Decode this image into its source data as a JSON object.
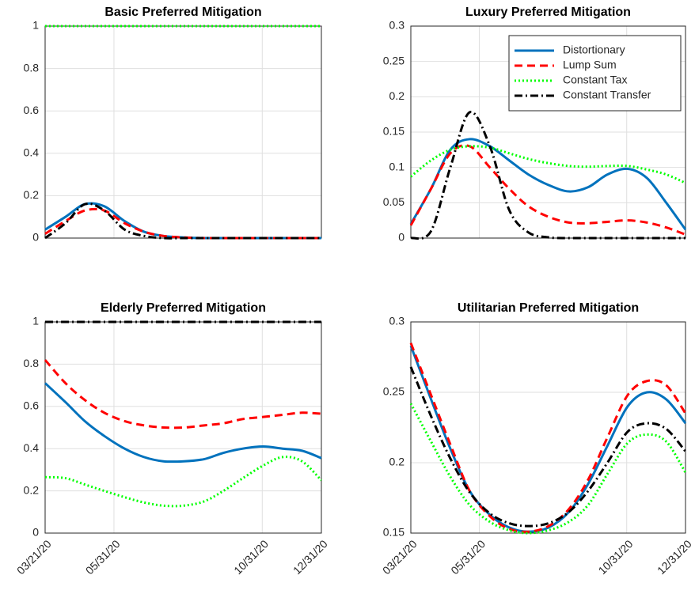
{
  "chart_data": [
    {
      "type": "line",
      "title": "Basic Preferred Mitigation",
      "grid": true,
      "show_xtick_labels": false,
      "x": [
        "03/21/20",
        "04/11/20",
        "05/01/20",
        "05/21/20",
        "06/11/20",
        "07/01/20",
        "07/21/20",
        "08/11/20",
        "09/01/20",
        "09/21/20",
        "10/11/20",
        "11/01/20",
        "11/21/20",
        "12/11/20",
        "12/31/20"
      ],
      "xlim": [
        "03/21/20",
        "12/31/20"
      ],
      "xticks": [
        "05/31/20",
        "10/31/20"
      ],
      "ylim": [
        0,
        1
      ],
      "yticks": [
        0,
        0.2,
        0.4,
        0.6,
        0.8,
        1
      ],
      "series": [
        {
          "color": "#0072bd",
          "dash": "none",
          "values": [
            0.04,
            0.1,
            0.16,
            0.15,
            0.08,
            0.03,
            0.01,
            0.003,
            0,
            0,
            0,
            0,
            0,
            0,
            0
          ]
        },
        {
          "color": "#ff0000",
          "dash": "10,6",
          "values": [
            0.02,
            0.08,
            0.13,
            0.13,
            0.07,
            0.03,
            0.01,
            0.003,
            0,
            0,
            0,
            0,
            0,
            0,
            0
          ]
        },
        {
          "color": "#00ff00",
          "dash": "2,3",
          "values": [
            1,
            1,
            1,
            1,
            1,
            1,
            1,
            1,
            1,
            1,
            1,
            1,
            1,
            1,
            1
          ]
        },
        {
          "color": "#000000",
          "dash": "10,4,2,4",
          "values": [
            0,
            0.07,
            0.16,
            0.13,
            0.04,
            0.01,
            0,
            0,
            0,
            0,
            0,
            0,
            0,
            0,
            0
          ]
        }
      ]
    },
    {
      "type": "line",
      "title": "Luxury Preferred Mitigation",
      "grid": true,
      "show_xtick_labels": false,
      "legend": "upper right",
      "x": [
        "03/21/20",
        "04/11/20",
        "05/01/20",
        "05/21/20",
        "06/11/20",
        "07/01/20",
        "07/21/20",
        "08/11/20",
        "09/01/20",
        "09/21/20",
        "10/11/20",
        "11/01/20",
        "11/21/20",
        "12/11/20",
        "12/31/20"
      ],
      "xlim": [
        "03/21/20",
        "12/31/20"
      ],
      "xticks": [
        "05/31/20",
        "10/31/20"
      ],
      "ylim": [
        0,
        0.3
      ],
      "yticks": [
        0,
        0.05,
        0.1,
        0.15,
        0.2,
        0.25,
        0.3
      ],
      "series": [
        {
          "name": "Distortionary",
          "color": "#0072bd",
          "dash": "none",
          "values": [
            0.02,
            0.07,
            0.125,
            0.14,
            0.13,
            0.11,
            0.09,
            0.075,
            0.066,
            0.072,
            0.09,
            0.098,
            0.085,
            0.05,
            0.012
          ]
        },
        {
          "name": "Lump Sum",
          "color": "#ff0000",
          "dash": "10,6",
          "values": [
            0.018,
            0.07,
            0.12,
            0.13,
            0.1,
            0.07,
            0.045,
            0.03,
            0.022,
            0.021,
            0.023,
            0.025,
            0.022,
            0.015,
            0.005
          ]
        },
        {
          "name": "Constant Tax",
          "color": "#00ff00",
          "dash": "2,3",
          "values": [
            0.087,
            0.11,
            0.125,
            0.13,
            0.128,
            0.12,
            0.112,
            0.106,
            0.102,
            0.101,
            0.102,
            0.102,
            0.097,
            0.09,
            0.078
          ]
        },
        {
          "name": "Constant Transfer",
          "color": "#000000",
          "dash": "10,4,2,4",
          "values": [
            0,
            0.01,
            0.1,
            0.178,
            0.13,
            0.04,
            0.008,
            0.001,
            0,
            0,
            0,
            0,
            0,
            0,
            0
          ]
        }
      ]
    },
    {
      "type": "line",
      "title": "Elderly Preferred Mitigation",
      "grid": true,
      "show_xtick_labels": true,
      "x": [
        "03/21/20",
        "04/11/20",
        "05/01/20",
        "05/21/20",
        "06/11/20",
        "07/01/20",
        "07/21/20",
        "08/11/20",
        "09/01/20",
        "09/21/20",
        "10/11/20",
        "11/01/20",
        "11/21/20",
        "12/11/20",
        "12/31/20"
      ],
      "xlim": [
        "03/21/20",
        "12/31/20"
      ],
      "xticks": [
        "03/21/20",
        "05/31/20",
        "10/31/20",
        "12/31/20"
      ],
      "ylim": [
        0,
        1
      ],
      "yticks": [
        0,
        0.2,
        0.4,
        0.6,
        0.8,
        1
      ],
      "series": [
        {
          "color": "#0072bd",
          "dash": "none",
          "values": [
            0.71,
            0.62,
            0.53,
            0.46,
            0.4,
            0.36,
            0.34,
            0.34,
            0.35,
            0.38,
            0.4,
            0.41,
            0.4,
            0.39,
            0.355
          ]
        },
        {
          "color": "#ff0000",
          "dash": "10,6",
          "values": [
            0.82,
            0.71,
            0.63,
            0.57,
            0.53,
            0.51,
            0.5,
            0.5,
            0.51,
            0.52,
            0.54,
            0.55,
            0.56,
            0.57,
            0.565
          ]
        },
        {
          "color": "#00ff00",
          "dash": "2,3",
          "values": [
            0.265,
            0.26,
            0.23,
            0.2,
            0.17,
            0.145,
            0.13,
            0.13,
            0.15,
            0.2,
            0.26,
            0.32,
            0.36,
            0.34,
            0.25
          ]
        },
        {
          "color": "#000000",
          "dash": "10,4,2,4",
          "values": [
            1,
            1,
            1,
            1,
            1,
            1,
            1,
            1,
            1,
            1,
            1,
            1,
            1,
            1,
            1
          ]
        }
      ]
    },
    {
      "type": "line",
      "title": "Utilitarian Preferred Mitigation",
      "grid": true,
      "show_xtick_labels": true,
      "x": [
        "03/21/20",
        "04/11/20",
        "05/01/20",
        "05/21/20",
        "06/11/20",
        "07/01/20",
        "07/21/20",
        "08/11/20",
        "09/01/20",
        "09/21/20",
        "10/11/20",
        "11/01/20",
        "11/21/20",
        "12/11/20",
        "12/31/20"
      ],
      "xlim": [
        "03/21/20",
        "12/31/20"
      ],
      "xticks": [
        "03/21/20",
        "05/31/20",
        "10/31/20",
        "12/31/20"
      ],
      "ylim": [
        0.15,
        0.3
      ],
      "yticks": [
        0.15,
        0.2,
        0.25,
        0.3
      ],
      "series": [
        {
          "color": "#0072bd",
          "dash": "none",
          "values": [
            0.283,
            0.245,
            0.21,
            0.18,
            0.163,
            0.154,
            0.151,
            0.154,
            0.165,
            0.185,
            0.212,
            0.24,
            0.25,
            0.245,
            0.228
          ]
        },
        {
          "color": "#ff0000",
          "dash": "10,6",
          "values": [
            0.285,
            0.248,
            0.213,
            0.18,
            0.162,
            0.153,
            0.151,
            0.155,
            0.167,
            0.188,
            0.218,
            0.248,
            0.258,
            0.255,
            0.235
          ]
        },
        {
          "color": "#00ff00",
          "dash": "2,3",
          "values": [
            0.242,
            0.215,
            0.19,
            0.17,
            0.158,
            0.152,
            0.15,
            0.152,
            0.158,
            0.17,
            0.192,
            0.214,
            0.22,
            0.215,
            0.193
          ]
        },
        {
          "color": "#000000",
          "dash": "10,4,2,4",
          "values": [
            0.268,
            0.233,
            0.203,
            0.179,
            0.164,
            0.157,
            0.155,
            0.157,
            0.165,
            0.18,
            0.2,
            0.222,
            0.228,
            0.224,
            0.208
          ]
        }
      ]
    }
  ]
}
